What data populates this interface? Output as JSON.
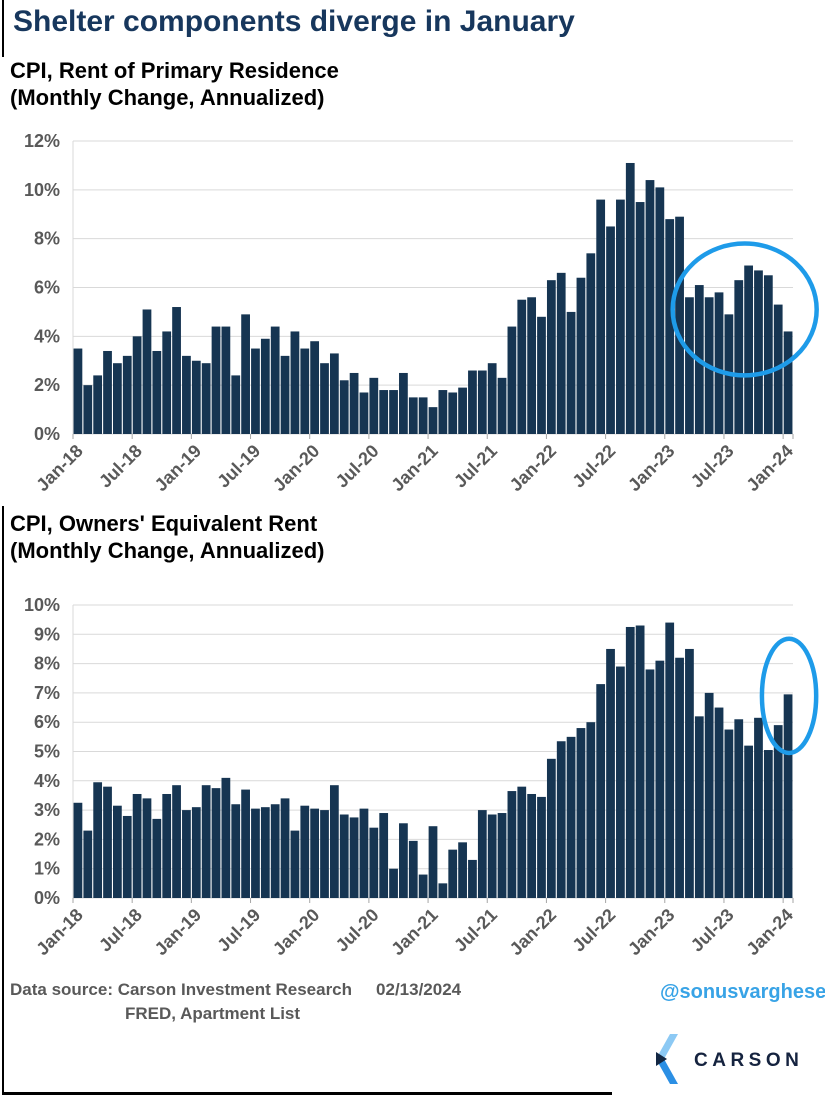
{
  "page": {
    "title": "Shelter components diverge in January"
  },
  "colors": {
    "title_navy": "#17375d",
    "bar_navy": "#163552",
    "axis_gray": "#595959",
    "grid_gray": "#d9d9d9",
    "tick_gray": "#a6a6a6",
    "accent_blue": "#1e9be9",
    "handle_blue": "#38a3e6",
    "logo_light_blue": "#8cc9f4",
    "logo_blue": "#2b8fe4",
    "logo_navy": "#132743"
  },
  "chart_data": [
    {
      "type": "bar",
      "title": "CPI, Rent of Primary Residence",
      "subtitle": "(Monthly Change, Annualized)",
      "ylabel": "",
      "xlabel": "",
      "grid": true,
      "ylim": [
        0,
        12
      ],
      "y_tick_step": 2,
      "y_tick_labels": [
        "0%",
        "2%",
        "4%",
        "6%",
        "8%",
        "10%",
        "12%"
      ],
      "x_tick_labels": [
        "Jan-18",
        "Jul-18",
        "Jan-19",
        "Jul-19",
        "Jan-20",
        "Jul-20",
        "Jan-21",
        "Jul-21",
        "Jan-22",
        "Jul-22",
        "Jan-23",
        "Jul-23",
        "Jan-24"
      ],
      "x_tick_every": 6,
      "bar_color": "#163552",
      "categories": [
        "Jan-18",
        "Feb-18",
        "Mar-18",
        "Apr-18",
        "May-18",
        "Jun-18",
        "Jul-18",
        "Aug-18",
        "Sep-18",
        "Oct-18",
        "Nov-18",
        "Dec-18",
        "Jan-19",
        "Feb-19",
        "Mar-19",
        "Apr-19",
        "May-19",
        "Jun-19",
        "Jul-19",
        "Aug-19",
        "Sep-19",
        "Oct-19",
        "Nov-19",
        "Dec-19",
        "Jan-20",
        "Feb-20",
        "Mar-20",
        "Apr-20",
        "May-20",
        "Jun-20",
        "Jul-20",
        "Aug-20",
        "Sep-20",
        "Oct-20",
        "Nov-20",
        "Dec-20",
        "Jan-21",
        "Feb-21",
        "Mar-21",
        "Apr-21",
        "May-21",
        "Jun-21",
        "Jul-21",
        "Aug-21",
        "Sep-21",
        "Oct-21",
        "Nov-21",
        "Dec-21",
        "Jan-22",
        "Feb-22",
        "Mar-22",
        "Apr-22",
        "May-22",
        "Jun-22",
        "Jul-22",
        "Aug-22",
        "Sep-22",
        "Oct-22",
        "Nov-22",
        "Dec-22",
        "Jan-23",
        "Feb-23",
        "Mar-23",
        "Apr-23",
        "May-23",
        "Jun-23",
        "Jul-23",
        "Aug-23",
        "Sep-23",
        "Oct-23",
        "Nov-23",
        "Dec-23",
        "Jan-24"
      ],
      "values": [
        3.5,
        2.0,
        2.4,
        3.4,
        2.9,
        3.2,
        4.0,
        5.1,
        3.4,
        4.2,
        5.2,
        3.2,
        3.0,
        2.9,
        4.4,
        4.4,
        2.4,
        4.9,
        3.5,
        3.9,
        4.4,
        3.2,
        4.2,
        3.5,
        3.8,
        2.9,
        3.3,
        2.2,
        2.5,
        1.7,
        2.3,
        1.8,
        1.8,
        2.5,
        1.5,
        1.5,
        1.1,
        1.8,
        1.7,
        1.9,
        2.6,
        2.6,
        2.9,
        2.3,
        4.4,
        5.5,
        5.6,
        4.8,
        6.3,
        6.6,
        5.0,
        6.4,
        7.4,
        9.6,
        8.5,
        9.6,
        11.1,
        9.5,
        10.4,
        10.1,
        8.8,
        8.9,
        5.6,
        6.1,
        5.6,
        5.8,
        4.9,
        6.3,
        6.9,
        6.7,
        6.5,
        5.3,
        4.2
      ],
      "annotation": {
        "shape": "ellipse",
        "meaning": "highlights recent shelter bars Jul-23 to Jan-24",
        "center_month_index": 68.1,
        "center_value": 5.1,
        "radius_months": 7.3,
        "radius_value": 2.7,
        "color": "#1e9be9"
      }
    },
    {
      "type": "bar",
      "title": "CPI, Owners' Equivalent Rent",
      "subtitle": "(Monthly Change, Annualized)",
      "ylabel": "",
      "xlabel": "",
      "grid": true,
      "ylim": [
        0,
        10
      ],
      "y_tick_step": 1,
      "y_tick_labels": [
        "0%",
        "1%",
        "2%",
        "3%",
        "4%",
        "5%",
        "6%",
        "7%",
        "8%",
        "9%",
        "10%"
      ],
      "x_tick_labels": [
        "Jan-18",
        "Jul-18",
        "Jan-19",
        "Jul-19",
        "Jan-20",
        "Jul-20",
        "Jan-21",
        "Jul-21",
        "Jan-22",
        "Jul-22",
        "Jan-23",
        "Jul-23",
        "Jan-24"
      ],
      "x_tick_every": 6,
      "bar_color": "#163552",
      "categories": [
        "Jan-18",
        "Feb-18",
        "Mar-18",
        "Apr-18",
        "May-18",
        "Jun-18",
        "Jul-18",
        "Aug-18",
        "Sep-18",
        "Oct-18",
        "Nov-18",
        "Dec-18",
        "Jan-19",
        "Feb-19",
        "Mar-19",
        "Apr-19",
        "May-19",
        "Jun-19",
        "Jul-19",
        "Aug-19",
        "Sep-19",
        "Oct-19",
        "Nov-19",
        "Dec-19",
        "Jan-20",
        "Feb-20",
        "Mar-20",
        "Apr-20",
        "May-20",
        "Jun-20",
        "Jul-20",
        "Aug-20",
        "Sep-20",
        "Oct-20",
        "Nov-20",
        "Dec-20",
        "Jan-21",
        "Feb-21",
        "Mar-21",
        "Apr-21",
        "May-21",
        "Jun-21",
        "Jul-21",
        "Aug-21",
        "Sep-21",
        "Oct-21",
        "Nov-21",
        "Dec-21",
        "Jan-22",
        "Feb-22",
        "Mar-22",
        "Apr-22",
        "May-22",
        "Jun-22",
        "Jul-22",
        "Aug-22",
        "Sep-22",
        "Oct-22",
        "Nov-22",
        "Dec-22",
        "Jan-23",
        "Feb-23",
        "Mar-23",
        "Apr-23",
        "May-23",
        "Jun-23",
        "Jul-23",
        "Aug-23",
        "Sep-23",
        "Oct-23",
        "Nov-23",
        "Dec-23",
        "Jan-24"
      ],
      "values": [
        3.25,
        2.3,
        3.95,
        3.8,
        3.15,
        2.8,
        3.55,
        3.4,
        2.7,
        3.55,
        3.85,
        3.0,
        3.1,
        3.85,
        3.75,
        4.1,
        3.2,
        3.7,
        3.05,
        3.1,
        3.2,
        3.4,
        2.3,
        3.15,
        3.05,
        3.0,
        3.85,
        2.85,
        2.75,
        3.05,
        2.4,
        2.9,
        1.0,
        2.55,
        1.95,
        0.8,
        2.45,
        0.5,
        1.65,
        1.9,
        1.3,
        3.0,
        2.85,
        2.9,
        3.65,
        3.8,
        3.55,
        3.45,
        4.75,
        5.35,
        5.5,
        5.8,
        6.0,
        7.3,
        8.5,
        7.9,
        9.25,
        9.3,
        7.8,
        8.1,
        9.4,
        8.2,
        8.5,
        6.2,
        7.0,
        6.5,
        5.75,
        6.1,
        5.2,
        6.15,
        5.05,
        5.9,
        6.95
      ],
      "annotation": {
        "shape": "ellipse",
        "meaning": "highlights January 2024 jump in OER",
        "center_month_index": 72.6,
        "center_value": 6.9,
        "radius_months": 2.75,
        "radius_value": 1.95,
        "color": "#1e9be9"
      }
    }
  ],
  "footer": {
    "source_label": "Data source: Carson Investment Research",
    "date": "02/13/2024",
    "source_line2": "FRED, Apartment List",
    "handle": "@sonusvarghese",
    "logo_text": "CARSON"
  }
}
